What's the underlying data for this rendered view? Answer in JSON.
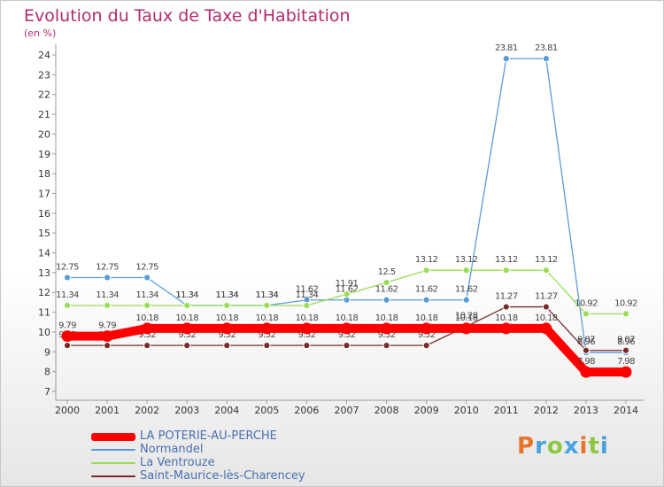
{
  "header": {
    "title": "Evolution du Taux de Taxe d'Habitation",
    "unit": "(en %)"
  },
  "chart_data": {
    "type": "line",
    "x": [
      2000,
      2001,
      2002,
      2003,
      2004,
      2005,
      2006,
      2007,
      2008,
      2009,
      2010,
      2011,
      2012,
      2013,
      2014
    ],
    "ylim": [
      7,
      24
    ],
    "yticks": [
      7,
      8,
      9,
      10,
      11,
      12,
      13,
      14,
      15,
      16,
      17,
      18,
      19,
      20,
      21,
      22,
      23,
      24
    ],
    "grid": false,
    "legend_position": "bottom-left",
    "series": [
      {
        "name": "Normandel",
        "color": "#5b9bd5",
        "values": [
          12.75,
          12.75,
          12.75,
          11.34,
          11.34,
          11.34,
          11.62,
          11.62,
          11.62,
          11.62,
          11.62,
          23.81,
          23.81,
          8.96,
          8.96
        ]
      },
      {
        "name": "La Ventrouze",
        "color": "#99dd55",
        "values": [
          11.34,
          11.34,
          11.34,
          11.34,
          11.34,
          11.34,
          11.34,
          11.91,
          12.5,
          13.12,
          13.12,
          13.12,
          13.12,
          10.92,
          10.92
        ]
      },
      {
        "name": "Saint-Maurice-lès-Charencey",
        "color": "#7a2a2a",
        "values": [
          9.32,
          9.32,
          9.32,
          9.32,
          9.32,
          9.32,
          9.32,
          9.32,
          9.32,
          9.32,
          10.28,
          11.27,
          11.27,
          9.07,
          9.07
        ]
      },
      {
        "name": "LA POTERIE-AU-PERCHE",
        "color": "#ff0000",
        "values": [
          9.79,
          9.79,
          10.18,
          10.18,
          10.18,
          10.18,
          10.18,
          10.18,
          10.18,
          10.18,
          10.18,
          10.18,
          10.18,
          7.98,
          7.98
        ]
      }
    ],
    "legend_order": [
      "LA POTERIE-AU-PERCHE",
      "Normandel",
      "La Ventrouze",
      "Saint-Maurice-lès-Charencey"
    ]
  },
  "logo": {
    "text": "Proxiti"
  }
}
